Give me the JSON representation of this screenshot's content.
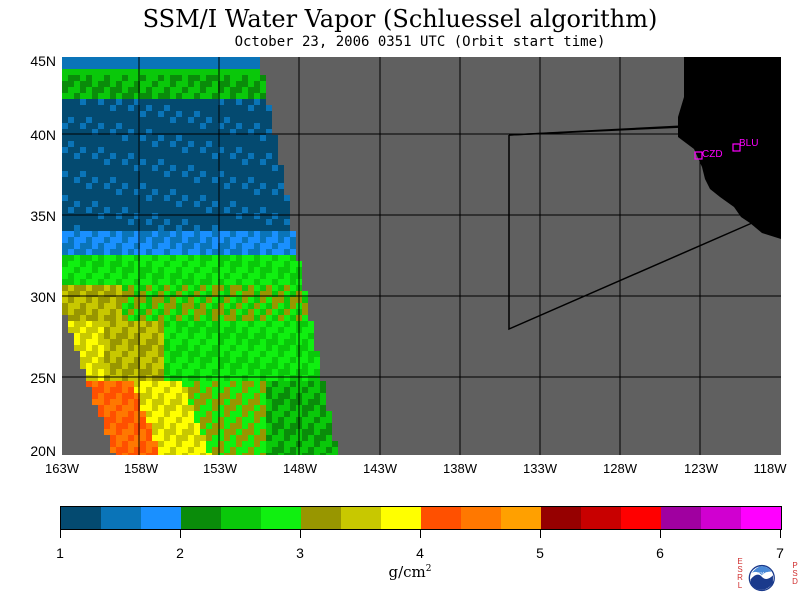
{
  "header": {
    "title": "SSM/I Water Vapor (Schluessel algorithm)",
    "subtitle": "October 23, 2006  0351 UTC  (Orbit start time)"
  },
  "map": {
    "lat_labels": [
      "45N",
      "40N",
      "35N",
      "30N",
      "25N",
      "20N"
    ],
    "lon_labels": [
      "163W",
      "158W",
      "153W",
      "148W",
      "143W",
      "138W",
      "133W",
      "128W",
      "123W",
      "118W"
    ],
    "stations": [
      {
        "label": "CZD"
      },
      {
        "label": "BLU"
      }
    ],
    "colors": {
      "background": "#606060",
      "land": "#000000",
      "grid": "#000000",
      "station": "#ff00ff"
    }
  },
  "colorbar": {
    "tick_labels": [
      "1",
      "2",
      "3",
      "4",
      "5",
      "6",
      "7"
    ],
    "colors": [
      "#044a70",
      "#0a74b8",
      "#1a90ff",
      "#0a8c0a",
      "#0ac80a",
      "#10f010",
      "#989600",
      "#c8c800",
      "#ffff00",
      "#ff5000",
      "#ff7800",
      "#ffa000",
      "#960000",
      "#c80000",
      "#ff0000",
      "#a000a0",
      "#d000d0",
      "#ff00ff"
    ],
    "units_base": "g/cm",
    "units_exp": "2"
  },
  "logo": {
    "left_letters": [
      "E",
      "S",
      "R",
      "L"
    ],
    "right_letters": [
      "P",
      "S",
      "D"
    ],
    "center_text": "NOAA"
  }
}
